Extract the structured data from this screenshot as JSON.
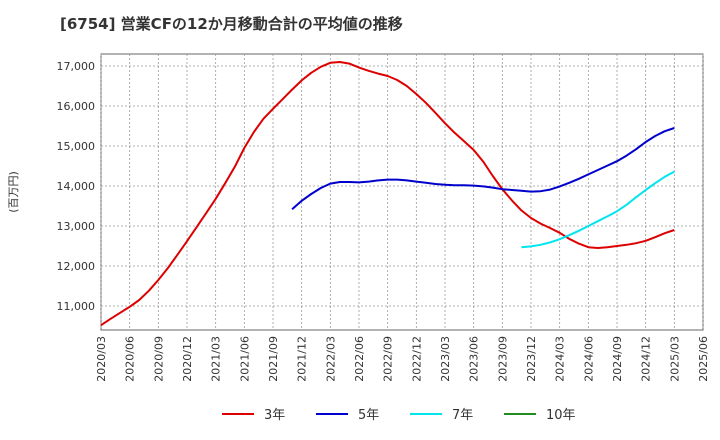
{
  "chart_data": {
    "type": "line",
    "title": "[6754]  営業CFの12か月移動合計の平均値の推移",
    "ylabel": "(百万円)",
    "xlabel": "",
    "ylim": [
      10400,
      17300
    ],
    "yticks": [
      11000,
      12000,
      13000,
      14000,
      15000,
      16000,
      17000
    ],
    "ytick_labels": [
      "11,000",
      "12,000",
      "13,000",
      "14,000",
      "15,000",
      "16,000",
      "17,000"
    ],
    "xticks": [
      "2020/03",
      "2020/06",
      "2020/09",
      "2020/12",
      "2021/03",
      "2021/06",
      "2021/09",
      "2021/12",
      "2022/03",
      "2022/06",
      "2022/09",
      "2022/12",
      "2023/03",
      "2023/06",
      "2023/09",
      "2023/12",
      "2024/03",
      "2024/06",
      "2024/09",
      "2024/12",
      "2025/03",
      "2025/06"
    ],
    "grid": true,
    "legend_position": "bottom",
    "series": [
      {
        "name": "3年",
        "color": "#dd0000",
        "points": [
          [
            "2020/03",
            10520
          ],
          [
            "2020/04",
            10680
          ],
          [
            "2020/05",
            10830
          ],
          [
            "2020/06",
            10980
          ],
          [
            "2020/07",
            11150
          ],
          [
            "2020/08",
            11380
          ],
          [
            "2020/09",
            11650
          ],
          [
            "2020/10",
            11950
          ],
          [
            "2020/11",
            12280
          ],
          [
            "2020/12",
            12620
          ],
          [
            "2021/01",
            12970
          ],
          [
            "2021/02",
            13320
          ],
          [
            "2021/03",
            13680
          ],
          [
            "2021/04",
            14070
          ],
          [
            "2021/05",
            14480
          ],
          [
            "2021/06",
            14950
          ],
          [
            "2021/07",
            15350
          ],
          [
            "2021/08",
            15680
          ],
          [
            "2021/09",
            15930
          ],
          [
            "2021/10",
            16170
          ],
          [
            "2021/11",
            16410
          ],
          [
            "2021/12",
            16640
          ],
          [
            "2022/01",
            16830
          ],
          [
            "2022/02",
            16980
          ],
          [
            "2022/03",
            17080
          ],
          [
            "2022/04",
            17100
          ],
          [
            "2022/05",
            17060
          ],
          [
            "2022/06",
            16960
          ],
          [
            "2022/07",
            16880
          ],
          [
            "2022/08",
            16810
          ],
          [
            "2022/09",
            16750
          ],
          [
            "2022/10",
            16650
          ],
          [
            "2022/11",
            16500
          ],
          [
            "2022/12",
            16300
          ],
          [
            "2023/01",
            16080
          ],
          [
            "2023/02",
            15830
          ],
          [
            "2023/03",
            15570
          ],
          [
            "2023/04",
            15330
          ],
          [
            "2023/05",
            15120
          ],
          [
            "2023/06",
            14900
          ],
          [
            "2023/07",
            14610
          ],
          [
            "2023/08",
            14250
          ],
          [
            "2023/09",
            13920
          ],
          [
            "2023/10",
            13640
          ],
          [
            "2023/11",
            13390
          ],
          [
            "2023/12",
            13200
          ],
          [
            "2024/01",
            13060
          ],
          [
            "2024/02",
            12950
          ],
          [
            "2024/03",
            12830
          ],
          [
            "2024/04",
            12680
          ],
          [
            "2024/05",
            12560
          ],
          [
            "2024/06",
            12470
          ],
          [
            "2024/07",
            12450
          ],
          [
            "2024/08",
            12470
          ],
          [
            "2024/09",
            12500
          ],
          [
            "2024/10",
            12530
          ],
          [
            "2024/11",
            12570
          ],
          [
            "2024/12",
            12630
          ],
          [
            "2025/01",
            12720
          ],
          [
            "2025/02",
            12820
          ],
          [
            "2025/03",
            12900
          ]
        ]
      },
      {
        "name": "5年",
        "color": "#0000cc",
        "points": [
          [
            "2021/11",
            13420
          ],
          [
            "2021/12",
            13630
          ],
          [
            "2022/01",
            13800
          ],
          [
            "2022/02",
            13950
          ],
          [
            "2022/03",
            14060
          ],
          [
            "2022/04",
            14100
          ],
          [
            "2022/05",
            14100
          ],
          [
            "2022/06",
            14090
          ],
          [
            "2022/07",
            14110
          ],
          [
            "2022/08",
            14140
          ],
          [
            "2022/09",
            14160
          ],
          [
            "2022/10",
            14160
          ],
          [
            "2022/11",
            14140
          ],
          [
            "2022/12",
            14110
          ],
          [
            "2023/01",
            14080
          ],
          [
            "2023/02",
            14050
          ],
          [
            "2023/03",
            14030
          ],
          [
            "2023/04",
            14020
          ],
          [
            "2023/05",
            14020
          ],
          [
            "2023/06",
            14010
          ],
          [
            "2023/07",
            13990
          ],
          [
            "2023/08",
            13960
          ],
          [
            "2023/09",
            13920
          ],
          [
            "2023/10",
            13900
          ],
          [
            "2023/11",
            13880
          ],
          [
            "2023/12",
            13860
          ],
          [
            "2024/01",
            13870
          ],
          [
            "2024/02",
            13910
          ],
          [
            "2024/03",
            13990
          ],
          [
            "2024/04",
            14080
          ],
          [
            "2024/05",
            14180
          ],
          [
            "2024/06",
            14290
          ],
          [
            "2024/07",
            14400
          ],
          [
            "2024/08",
            14510
          ],
          [
            "2024/09",
            14620
          ],
          [
            "2024/10",
            14760
          ],
          [
            "2024/11",
            14920
          ],
          [
            "2024/12",
            15100
          ],
          [
            "2025/01",
            15250
          ],
          [
            "2025/02",
            15370
          ],
          [
            "2025/03",
            15450
          ]
        ]
      },
      {
        "name": "7年",
        "color": "#00e5ee",
        "points": [
          [
            "2023/11",
            12470
          ],
          [
            "2023/12",
            12490
          ],
          [
            "2024/01",
            12530
          ],
          [
            "2024/02",
            12590
          ],
          [
            "2024/03",
            12670
          ],
          [
            "2024/04",
            12770
          ],
          [
            "2024/05",
            12880
          ],
          [
            "2024/06",
            13000
          ],
          [
            "2024/07",
            13120
          ],
          [
            "2024/08",
            13240
          ],
          [
            "2024/09",
            13370
          ],
          [
            "2024/10",
            13530
          ],
          [
            "2024/11",
            13720
          ],
          [
            "2024/12",
            13900
          ],
          [
            "2025/01",
            14070
          ],
          [
            "2025/02",
            14230
          ],
          [
            "2025/03",
            14360
          ]
        ]
      },
      {
        "name": "10年",
        "color": "#228b22",
        "points": []
      }
    ]
  }
}
